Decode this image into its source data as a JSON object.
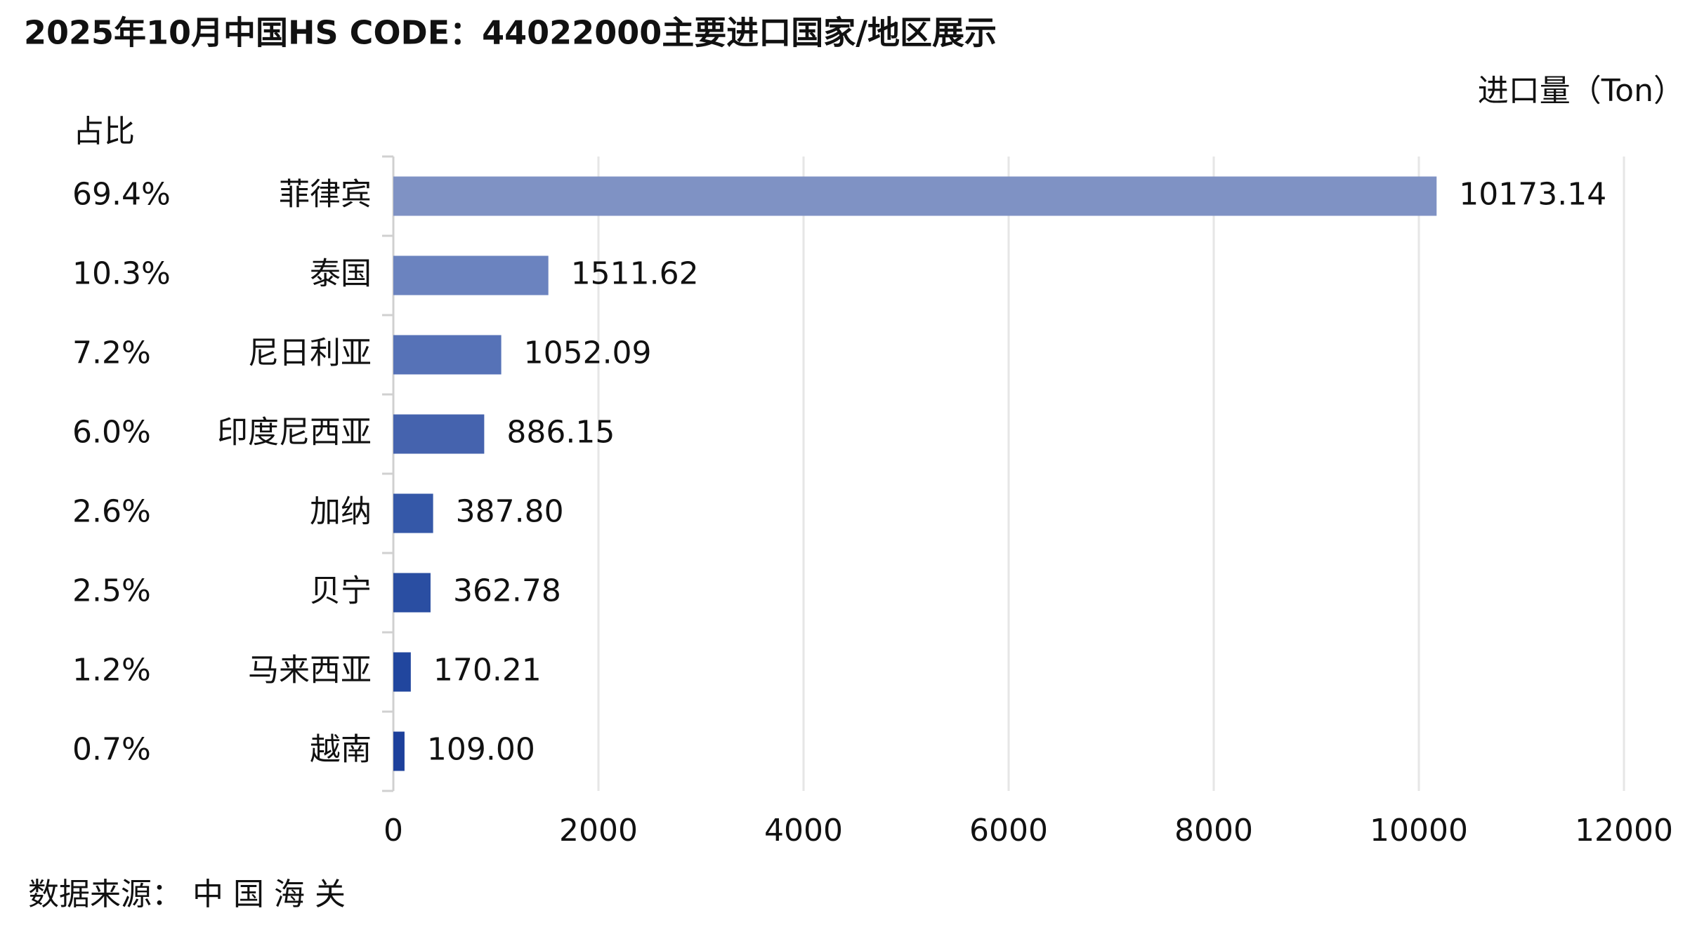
{
  "chart_data": {
    "type": "bar",
    "orientation": "horizontal",
    "title": "2025年10月中国HS CODE：44022000主要进口国家/地区展示",
    "x_label": "进口量（Ton）",
    "share_title": "占比",
    "categories": [
      "菲律宾",
      "泰国",
      "尼日利亚",
      "印度尼西亚",
      "加纳",
      "贝宁",
      "马来西亚",
      "越南"
    ],
    "values": [
      10173.14,
      1511.62,
      1052.09,
      886.15,
      387.8,
      362.78,
      170.21,
      109
    ],
    "value_labels": [
      "10173.14",
      "1511.62",
      "1052.09",
      "886.15",
      "387.80",
      "362.78",
      "170.21",
      "109.00"
    ],
    "share_labels": [
      "69.4%",
      "10.3%",
      "7.2%",
      "6.0%",
      "2.6%",
      "2.5%",
      "1.2%",
      "0.7%"
    ],
    "colors": [
      "#7f92c4",
      "#6b83bf",
      "#5672b7",
      "#4563ae",
      "#3558a8",
      "#2a4ea2",
      "#21469e",
      "#1d409b"
    ],
    "xlim": [
      0,
      12000
    ],
    "xticks": [
      0,
      2000,
      4000,
      6000,
      8000,
      10000,
      12000
    ],
    "grid": true,
    "source": "数据来源：  中 国 海 关"
  }
}
